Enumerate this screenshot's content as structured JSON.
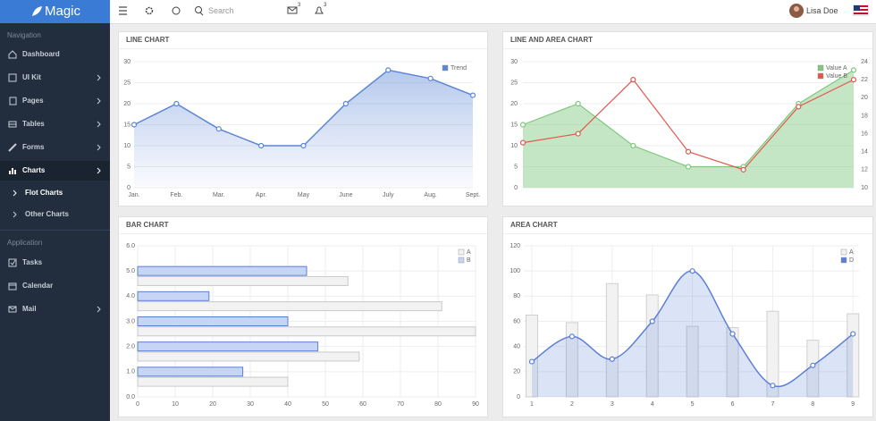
{
  "sidebar": {
    "brand": "Magic",
    "sections": [
      {
        "title": "Navigation",
        "items": [
          "Dashboard",
          "UI Kit",
          "Pages",
          "Tables",
          "Forms",
          "Charts",
          "Flot Charts",
          "Other Charts"
        ]
      },
      {
        "title": "Application",
        "items": [
          "Tasks",
          "Calendar",
          "Mail"
        ]
      }
    ]
  },
  "header": {
    "search": "Search",
    "mail_count": 3,
    "alert_count": 3,
    "user": "Lisa Doe"
  },
  "panels": [
    {
      "title": "LINE CHART",
      "chart": {
        "type": "line",
        "categories": [
          "Jan.",
          "Feb.",
          "Mar.",
          "Apr.",
          "May",
          "June",
          "July",
          "Aug.",
          "Sept."
        ],
        "series": [
          {
            "name": "Trend",
            "color": "#5b86d6",
            "area": true,
            "values": [
              15,
              20,
              14,
              10,
              10,
              20,
              28,
              26,
              22
            ]
          }
        ],
        "ylim": [
          0,
          30
        ],
        "yticks": [
          0,
          5,
          10,
          15,
          20,
          25,
          30
        ],
        "grid": true
      }
    },
    {
      "title": "LINE AND AREA CHART",
      "chart": {
        "type": "line_area",
        "series": [
          {
            "name": "Value A",
            "color": "#7ec87e",
            "area": true,
            "values": [
              15,
              20,
              10,
              5,
              5,
              20,
              28
            ]
          },
          {
            "name": "Value B",
            "color": "#e2574c",
            "axis": "y2",
            "values": [
              15,
              16,
              22,
              14,
              12,
              19,
              22
            ]
          }
        ],
        "ylim": [
          0,
          30
        ],
        "yticks": [
          0,
          5,
          10,
          15,
          20,
          25,
          30
        ],
        "y2lim": [
          10,
          24
        ],
        "y2ticks": [
          10,
          12,
          14,
          16,
          18,
          20,
          22,
          24
        ],
        "grid": true
      }
    },
    {
      "title": "BAR CHART",
      "chart": {
        "type": "hbar",
        "series": [
          {
            "name": "A",
            "color": "#f2f2f2",
            "values": [
              56,
              81,
              90,
              59,
              40
            ],
            "y": [
              4.6,
              3.6,
              2.6,
              1.6,
              0.6
            ]
          },
          {
            "name": "B",
            "color": "#c6d4f5",
            "values": [
              45,
              19,
              40,
              48,
              28
            ],
            "y": [
              5,
              4,
              3,
              2,
              1
            ]
          }
        ],
        "xlim": [
          0,
          90
        ],
        "xticks": [
          0,
          10,
          20,
          30,
          40,
          50,
          60,
          70,
          80,
          90
        ],
        "ylim": [
          0,
          6
        ],
        "yticks": [
          {
            "value": 0,
            "label": "0.0"
          },
          {
            "value": 1,
            "label": "1.0"
          },
          {
            "value": 2,
            "label": "2.0"
          },
          {
            "value": 3,
            "label": "3.0"
          },
          {
            "value": 4,
            "label": "4.0"
          },
          {
            "value": 5,
            "label": "5.0"
          },
          {
            "value": 6,
            "label": "6.0"
          }
        ],
        "grid": true
      }
    },
    {
      "title": "AREA CHART",
      "chart": {
        "type": "area_bar",
        "x": [
          1,
          2,
          3,
          4,
          5,
          6,
          7,
          8,
          9
        ],
        "series": [
          {
            "name": "A",
            "kind": "bar",
            "color": "#f2f2f2",
            "values": [
              65,
              59,
              90,
              81,
              56,
              55,
              68,
              45,
              66
            ]
          },
          {
            "name": "D",
            "kind": "spline",
            "color": "#5b7fd8",
            "values": [
              28,
              48,
              30,
              60,
              100,
              50,
              9,
              25,
              50
            ]
          }
        ],
        "xlim": [
          0.8,
          9.15
        ],
        "xticks": [
          1,
          2,
          3,
          4,
          5,
          6,
          7,
          8,
          9
        ],
        "ylim": [
          0,
          120
        ],
        "yticks": [
          0,
          20,
          40,
          60,
          80,
          100,
          120
        ],
        "grid": true
      }
    }
  ]
}
